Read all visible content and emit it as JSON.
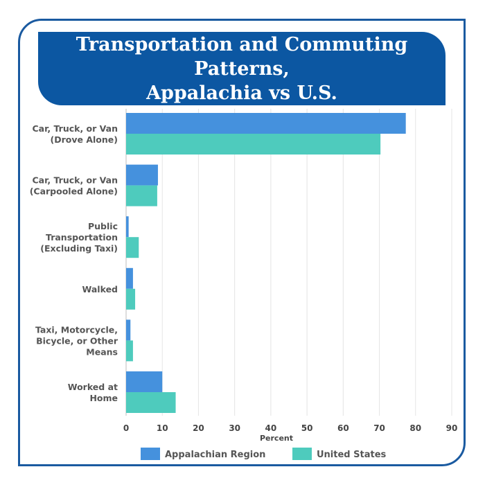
{
  "chart_data": {
    "type": "bar",
    "orientation": "horizontal",
    "title": "Transportation and Commuting Patterns,\nAppalachia vs U.S.",
    "xlabel": "Percent",
    "ylabel": "",
    "xlim": [
      0,
      90
    ],
    "xticks": [
      0,
      10,
      20,
      30,
      40,
      50,
      60,
      70,
      80,
      90
    ],
    "grid": "vertical",
    "legend_position": "bottom",
    "categories": [
      [
        "Car, Truck, or Van",
        "(Drove Alone)"
      ],
      [
        "Car, Truck, or Van",
        "(Carpooled Alone)"
      ],
      [
        "Public",
        "Transportation",
        "(Excluding Taxi)"
      ],
      [
        "Walked"
      ],
      [
        "Taxi, Motorcycle,",
        "Bicycle, or Other",
        "Means"
      ],
      [
        "Worked at",
        "Home"
      ]
    ],
    "series": [
      {
        "name": "Appalachian Region",
        "color": "#4591dd",
        "values": [
          77.3,
          8.8,
          0.7,
          1.9,
          1.2,
          10.0
        ]
      },
      {
        "name": "United States",
        "color": "#4ecbbd",
        "values": [
          70.3,
          8.6,
          3.5,
          2.5,
          1.9,
          13.7
        ]
      }
    ]
  }
}
